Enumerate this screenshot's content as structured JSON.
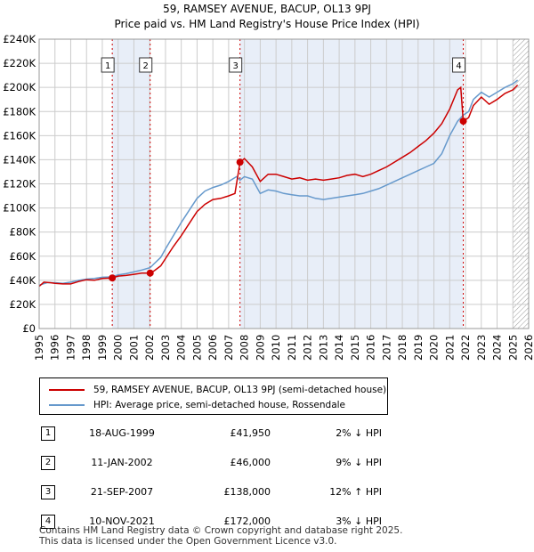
{
  "chart_data": {
    "type": "line",
    "title": "59, RAMSEY AVENUE, BACUP, OL13 9PJ",
    "subtitle": "Price paid vs. HM Land Registry's House Price Index (HPI)",
    "xlim": [
      1995,
      2026
    ],
    "ylim": [
      0,
      240000
    ],
    "y_ticks": [
      {
        "value": 0,
        "label": "£0"
      },
      {
        "value": 20000,
        "label": "£20K"
      },
      {
        "value": 40000,
        "label": "£40K"
      },
      {
        "value": 60000,
        "label": "£60K"
      },
      {
        "value": 80000,
        "label": "£80K"
      },
      {
        "value": 100000,
        "label": "£100K"
      },
      {
        "value": 120000,
        "label": "£120K"
      },
      {
        "value": 140000,
        "label": "£140K"
      },
      {
        "value": 160000,
        "label": "£160K"
      },
      {
        "value": 180000,
        "label": "£180K"
      },
      {
        "value": 200000,
        "label": "£200K"
      },
      {
        "value": 220000,
        "label": "£220K"
      },
      {
        "value": 240000,
        "label": "£240K"
      }
    ],
    "x_ticks": [
      "1995",
      "1996",
      "1997",
      "1998",
      "1999",
      "2000",
      "2001",
      "2002",
      "2003",
      "2004",
      "2005",
      "2006",
      "2007",
      "2008",
      "2009",
      "2010",
      "2011",
      "2012",
      "2013",
      "2014",
      "2015",
      "2016",
      "2017",
      "2018",
      "2019",
      "2020",
      "2021",
      "2022",
      "2023",
      "2024",
      "2025",
      "2026"
    ],
    "shaded_periods": [
      [
        1999.63,
        2002.03
      ],
      [
        2007.72,
        2021.86
      ]
    ],
    "hatched_from": 2025.0,
    "series": [
      {
        "name": "59, RAMSEY AVENUE, BACUP, OL13 9PJ (semi-detached house)",
        "color": "#cc0000",
        "points": [
          [
            1995.0,
            35000
          ],
          [
            1995.3,
            38500
          ],
          [
            1995.7,
            38000
          ],
          [
            1996.0,
            37500
          ],
          [
            1996.5,
            37000
          ],
          [
            1997.0,
            37000
          ],
          [
            1997.5,
            39000
          ],
          [
            1998.0,
            40500
          ],
          [
            1998.5,
            40000
          ],
          [
            1999.0,
            41500
          ],
          [
            1999.63,
            41950
          ],
          [
            2000.0,
            43500
          ],
          [
            2000.5,
            44000
          ],
          [
            2001.0,
            45000
          ],
          [
            2001.5,
            46000
          ],
          [
            2002.03,
            46000
          ],
          [
            2002.3,
            48000
          ],
          [
            2002.7,
            52000
          ],
          [
            2003.0,
            58000
          ],
          [
            2003.5,
            68000
          ],
          [
            2004.0,
            77000
          ],
          [
            2004.5,
            87000
          ],
          [
            2005.0,
            97000
          ],
          [
            2005.5,
            103000
          ],
          [
            2006.0,
            107000
          ],
          [
            2006.5,
            108000
          ],
          [
            2007.0,
            110000
          ],
          [
            2007.4,
            112000
          ],
          [
            2007.72,
            138000
          ],
          [
            2008.0,
            141000
          ],
          [
            2008.5,
            134000
          ],
          [
            2009.0,
            122000
          ],
          [
            2009.5,
            128000
          ],
          [
            2010.0,
            128000
          ],
          [
            2010.5,
            126000
          ],
          [
            2011.0,
            124000
          ],
          [
            2011.5,
            125000
          ],
          [
            2012.0,
            123000
          ],
          [
            2012.5,
            124000
          ],
          [
            2013.0,
            123000
          ],
          [
            2013.5,
            124000
          ],
          [
            2014.0,
            125000
          ],
          [
            2014.5,
            127000
          ],
          [
            2015.0,
            128000
          ],
          [
            2015.5,
            126000
          ],
          [
            2016.0,
            128000
          ],
          [
            2016.5,
            131000
          ],
          [
            2017.0,
            134000
          ],
          [
            2017.5,
            138000
          ],
          [
            2018.0,
            142000
          ],
          [
            2018.5,
            146000
          ],
          [
            2019.0,
            151000
          ],
          [
            2019.5,
            156000
          ],
          [
            2020.0,
            162000
          ],
          [
            2020.5,
            170000
          ],
          [
            2021.0,
            182000
          ],
          [
            2021.5,
            198000
          ],
          [
            2021.7,
            200000
          ],
          [
            2021.86,
            172000
          ],
          [
            2022.2,
            175000
          ],
          [
            2022.5,
            185000
          ],
          [
            2023.0,
            192000
          ],
          [
            2023.5,
            186000
          ],
          [
            2024.0,
            190000
          ],
          [
            2024.5,
            195000
          ],
          [
            2025.0,
            198000
          ],
          [
            2025.3,
            202000
          ]
        ]
      },
      {
        "name": "HPI: Average price, semi-detached house, Rossendale",
        "color": "#6699cc",
        "points": [
          [
            1995.0,
            36000
          ],
          [
            1995.5,
            38000
          ],
          [
            1996.0,
            38000
          ],
          [
            1996.5,
            37500
          ],
          [
            1997.0,
            38500
          ],
          [
            1997.5,
            40000
          ],
          [
            1998.0,
            41000
          ],
          [
            1998.5,
            41500
          ],
          [
            1999.0,
            42500
          ],
          [
            1999.63,
            42800
          ],
          [
            2000.0,
            44500
          ],
          [
            2000.5,
            45500
          ],
          [
            2001.0,
            47000
          ],
          [
            2001.5,
            48500
          ],
          [
            2002.03,
            50500
          ],
          [
            2002.3,
            54000
          ],
          [
            2002.7,
            59000
          ],
          [
            2003.0,
            66000
          ],
          [
            2003.5,
            77000
          ],
          [
            2004.0,
            88000
          ],
          [
            2004.5,
            98000
          ],
          [
            2005.0,
            108000
          ],
          [
            2005.5,
            114000
          ],
          [
            2006.0,
            117000
          ],
          [
            2006.5,
            119000
          ],
          [
            2007.0,
            122000
          ],
          [
            2007.5,
            126000
          ],
          [
            2007.72,
            123000
          ],
          [
            2008.0,
            126000
          ],
          [
            2008.5,
            124000
          ],
          [
            2009.0,
            112000
          ],
          [
            2009.5,
            115000
          ],
          [
            2010.0,
            114000
          ],
          [
            2010.5,
            112000
          ],
          [
            2011.0,
            111000
          ],
          [
            2011.5,
            110000
          ],
          [
            2012.0,
            110000
          ],
          [
            2012.5,
            108000
          ],
          [
            2013.0,
            107000
          ],
          [
            2013.5,
            108000
          ],
          [
            2014.0,
            109000
          ],
          [
            2014.5,
            110000
          ],
          [
            2015.0,
            111000
          ],
          [
            2015.5,
            112000
          ],
          [
            2016.0,
            114000
          ],
          [
            2016.5,
            116000
          ],
          [
            2017.0,
            119000
          ],
          [
            2017.5,
            122000
          ],
          [
            2018.0,
            125000
          ],
          [
            2018.5,
            128000
          ],
          [
            2019.0,
            131000
          ],
          [
            2019.5,
            134000
          ],
          [
            2020.0,
            137000
          ],
          [
            2020.5,
            145000
          ],
          [
            2021.0,
            160000
          ],
          [
            2021.5,
            172000
          ],
          [
            2021.86,
            177000
          ],
          [
            2022.2,
            180000
          ],
          [
            2022.5,
            190000
          ],
          [
            2023.0,
            196000
          ],
          [
            2023.5,
            192000
          ],
          [
            2024.0,
            196000
          ],
          [
            2024.5,
            200000
          ],
          [
            2025.0,
            203000
          ],
          [
            2025.3,
            206000
          ]
        ]
      }
    ],
    "sales": [
      {
        "number": "1",
        "x": 1999.63,
        "price": 41950
      },
      {
        "number": "2",
        "x": 2002.03,
        "price": 46000
      },
      {
        "number": "3",
        "x": 2007.72,
        "price": 138000
      },
      {
        "number": "4",
        "x": 2021.86,
        "price": 172000
      }
    ]
  },
  "legend": {
    "property": "59, RAMSEY AVENUE, BACUP, OL13 9PJ (semi-detached house)",
    "hpi": "HPI: Average price, semi-detached house, Rossendale"
  },
  "sales_table": [
    {
      "number": "1",
      "date": "18-AUG-1999",
      "price": "£41,950",
      "hpi": "2% ↓ HPI"
    },
    {
      "number": "2",
      "date": "11-JAN-2002",
      "price": "£46,000",
      "hpi": "9% ↓ HPI"
    },
    {
      "number": "3",
      "date": "21-SEP-2007",
      "price": "£138,000",
      "hpi": "12% ↑ HPI"
    },
    {
      "number": "4",
      "date": "10-NOV-2021",
      "price": "£172,000",
      "hpi": "3% ↓ HPI"
    }
  ],
  "footer": {
    "line1": "Contains HM Land Registry data © Crown copyright and database right 2025.",
    "line2": "This data is licensed under the Open Government Licence v3.0."
  },
  "colors": {
    "property": "#cc0000",
    "hpi": "#6699cc",
    "shade": "#e8eef8",
    "grid": "#cccccc"
  }
}
